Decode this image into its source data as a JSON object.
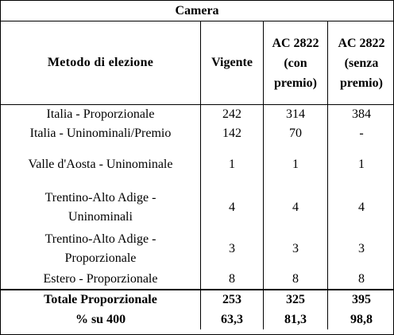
{
  "title": "Camera",
  "headers": {
    "method": "Metodo di elezione",
    "vigente": "Vigente",
    "ac_con": [
      "AC 2822",
      "(con",
      "premio)"
    ],
    "ac_senza": [
      "AC 2822",
      "(senza",
      "premio)"
    ]
  },
  "rows": [
    {
      "label": [
        "Italia - Proporzionale"
      ],
      "vigente": "242",
      "ac_con": "314",
      "ac_senza": "384"
    },
    {
      "label": [
        "Italia - Uninominali/Premio"
      ],
      "vigente": "142",
      "ac_con": "70",
      "ac_senza": "-"
    },
    {
      "label": [
        "Valle d'Aosta - Uninominale"
      ],
      "vigente": "1",
      "ac_con": "1",
      "ac_senza": "1"
    },
    {
      "label": [
        "Trentino-Alto Adige -",
        "Uninominali"
      ],
      "vigente": "4",
      "ac_con": "4",
      "ac_senza": "4"
    },
    {
      "label": [
        "Trentino-Alto Adige -",
        "Proporzionale"
      ],
      "vigente": "3",
      "ac_con": "3",
      "ac_senza": "3"
    },
    {
      "label": [
        "Estero - Proporzionale"
      ],
      "vigente": "8",
      "ac_con": "8",
      "ac_senza": "8"
    }
  ],
  "totals": [
    {
      "label": "Totale Proporzionale",
      "vigente": "253",
      "ac_con": "325",
      "ac_senza": "395"
    },
    {
      "label": "% su 400",
      "vigente": "63,3",
      "ac_con": "81,3",
      "ac_senza": "98,8"
    }
  ]
}
